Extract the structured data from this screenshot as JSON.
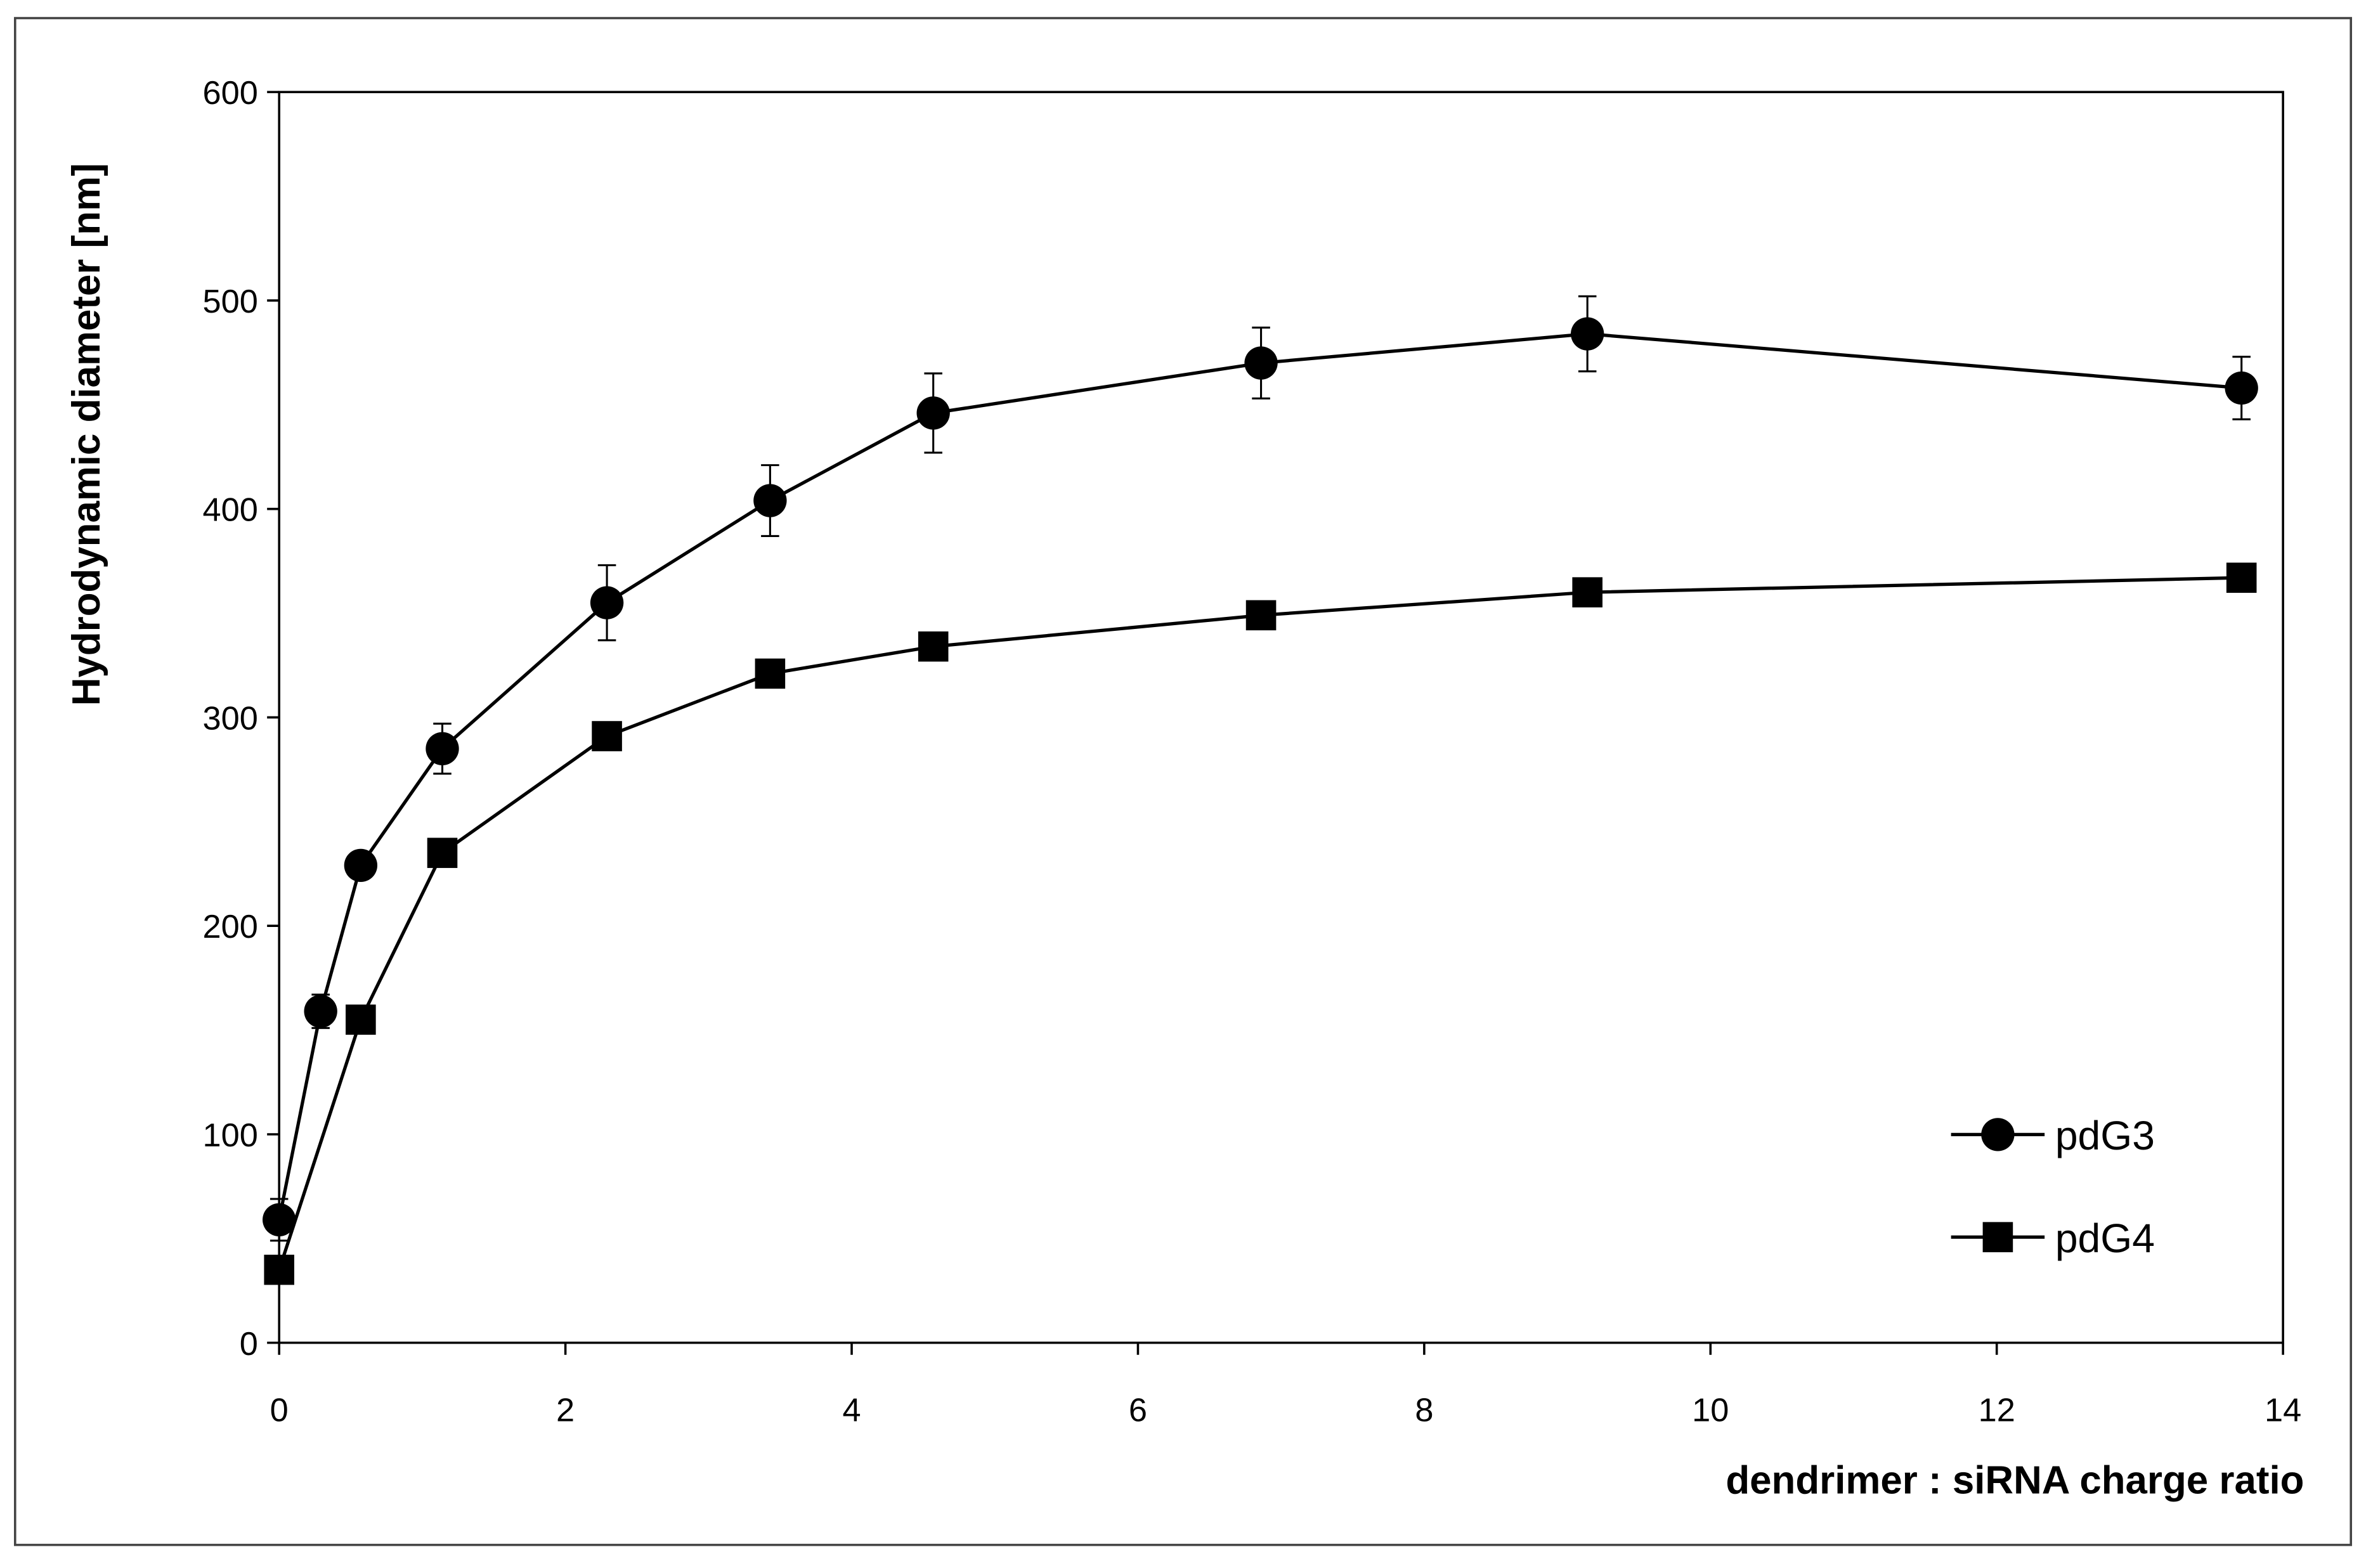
{
  "chart_data": {
    "type": "line",
    "x_label": "dendrimer : siRNA charge ratio",
    "y_label": "Hydrodynamic diameter [nm]",
    "xlim": [
      0,
      14
    ],
    "xticks": [
      0,
      2,
      4,
      6,
      8,
      10,
      12,
      14
    ],
    "ylim": [
      0,
      600
    ],
    "yticks": [
      0,
      100,
      200,
      300,
      400,
      500,
      600
    ],
    "grid": false,
    "legend": "lower right",
    "series": [
      {
        "name": "pdG3",
        "color": "#000000",
        "marker": "circle",
        "x": [
          0,
          0.29,
          0.57,
          1.14,
          2.29,
          3.43,
          4.57,
          6.86,
          9.14,
          13.71
        ],
        "values": [
          59,
          159,
          229,
          285,
          355,
          404,
          446,
          470,
          484,
          458
        ],
        "errors": [
          10,
          8,
          5,
          12,
          18,
          17,
          19,
          17,
          18,
          15
        ]
      },
      {
        "name": "pdG4",
        "color": "#000000",
        "marker": "square",
        "x": [
          0,
          0.57,
          1.14,
          2.29,
          3.43,
          4.57,
          6.86,
          9.14,
          13.71
        ],
        "values": [
          35,
          155,
          235,
          291,
          321,
          334,
          349,
          360,
          367
        ]
      }
    ]
  }
}
